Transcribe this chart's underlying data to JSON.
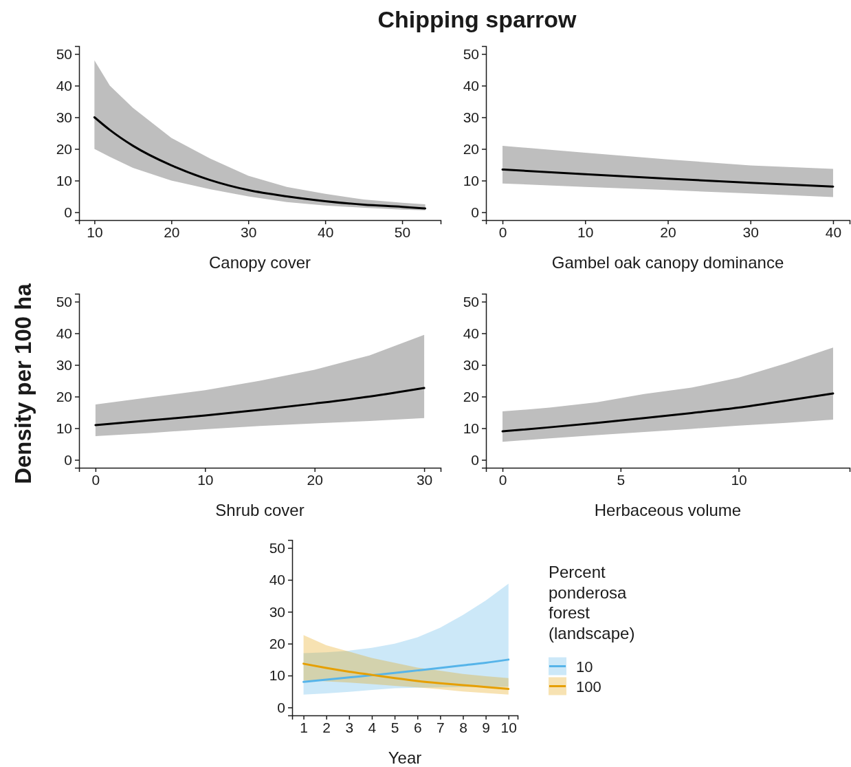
{
  "chart_data": [
    {
      "type": "line",
      "title": "Chipping sparrow",
      "ylabel": "Density per 100 ha",
      "xlabel": "Canopy cover",
      "xlim": [
        8,
        55
      ],
      "xticks": [
        10,
        20,
        30,
        40,
        50
      ],
      "ylim": [
        -2.5,
        52.5
      ],
      "yticks": [
        0,
        10,
        20,
        30,
        40,
        50
      ],
      "legend": false,
      "series": [
        {
          "color": "#000000",
          "x": [
            10,
            12,
            15,
            20,
            25,
            30,
            35,
            40,
            45,
            50,
            53
          ],
          "values": [
            30,
            26,
            21,
            14.8,
            10.2,
            7,
            5,
            3.5,
            2.4,
            1.7,
            1.2
          ],
          "lower": [
            20,
            17.5,
            14,
            10,
            7.3,
            5,
            3.2,
            2.1,
            1.4,
            0.8,
            0.6
          ],
          "upper": [
            48,
            40,
            33,
            23.5,
            17,
            11.5,
            8,
            5.8,
            4,
            3,
            2.5
          ]
        }
      ]
    },
    {
      "type": "line",
      "xlabel": "Gambel oak canopy dominance",
      "xlim": [
        -2,
        42
      ],
      "xticks": [
        0,
        10,
        20,
        30,
        40
      ],
      "ylim": [
        -2.5,
        52.5
      ],
      "yticks": [
        0,
        10,
        20,
        30,
        40,
        50
      ],
      "legend": false,
      "series": [
        {
          "color": "#000000",
          "x": [
            0,
            10,
            20,
            30,
            40
          ],
          "values": [
            13.5,
            12,
            10.6,
            9.3,
            8.1
          ],
          "lower": [
            9.1,
            8,
            7,
            5.9,
            4.8
          ],
          "upper": [
            21,
            18.8,
            16.7,
            14.8,
            13.7
          ]
        }
      ]
    },
    {
      "type": "line",
      "xlabel": "Shrub cover",
      "xlim": [
        -1.5,
        31.5
      ],
      "xticks": [
        0,
        10,
        20,
        30
      ],
      "ylim": [
        -2.5,
        52.5
      ],
      "yticks": [
        0,
        10,
        20,
        30,
        40,
        50
      ],
      "legend": false,
      "series": [
        {
          "color": "#000000",
          "x": [
            0,
            5,
            10,
            15,
            20,
            25,
            30
          ],
          "values": [
            11,
            12.5,
            14,
            15.8,
            17.8,
            20,
            22.7
          ],
          "lower": [
            7.5,
            8.5,
            9.7,
            10.7,
            11.5,
            12.3,
            13.2
          ],
          "upper": [
            17.5,
            19.8,
            22,
            25,
            28.5,
            33,
            39.5
          ]
        }
      ]
    },
    {
      "type": "line",
      "xlabel": "Herbaceous volume",
      "xlim": [
        -0.7,
        14.7
      ],
      "xticks": [
        0,
        5,
        10
      ],
      "ylim": [
        -2.5,
        52.5
      ],
      "yticks": [
        0,
        10,
        20,
        30,
        40,
        50
      ],
      "legend": false,
      "series": [
        {
          "color": "#000000",
          "x": [
            0,
            2,
            4,
            6,
            8,
            10,
            12,
            14
          ],
          "values": [
            9,
            10.3,
            11.7,
            13.2,
            14.8,
            16.5,
            18.7,
            21
          ],
          "lower": [
            5.7,
            6.8,
            7.8,
            8.8,
            9.8,
            10.8,
            11.7,
            12.7
          ],
          "upper": [
            15.3,
            16.5,
            18.2,
            20.8,
            22.8,
            26,
            30.5,
            35.5
          ]
        }
      ]
    },
    {
      "type": "line",
      "xlabel": "Year",
      "legend_title": "Percent ponderosa forest (landscape)",
      "xlim": [
        0.5,
        10.4
      ],
      "xticks": [
        1,
        2,
        3,
        4,
        5,
        6,
        7,
        8,
        9,
        10
      ],
      "ylim": [
        -2.5,
        52.5
      ],
      "yticks": [
        0,
        10,
        20,
        30,
        40,
        50
      ],
      "legend": "right",
      "series": [
        {
          "name": "10",
          "color": "#56b4e9",
          "x": [
            1,
            2,
            3,
            4,
            5,
            6,
            7,
            8,
            9,
            10
          ],
          "values": [
            8,
            8.7,
            9.4,
            10.1,
            10.8,
            11.6,
            12.4,
            13.2,
            14,
            15
          ],
          "lower": [
            4,
            4.4,
            4.9,
            5.5,
            6,
            6.2,
            6.3,
            6.4,
            6.4,
            6.5
          ],
          "upper": [
            17,
            17.3,
            17.8,
            18.7,
            20,
            22,
            25,
            29,
            33.5,
            38.8
          ]
        },
        {
          "name": "100",
          "color": "#e69f00",
          "x": [
            1,
            2,
            3,
            4,
            5,
            6,
            7,
            8,
            9,
            10
          ],
          "values": [
            13.7,
            12.4,
            11.2,
            10.2,
            9.2,
            8.3,
            7.6,
            7,
            6.4,
            5.8
          ],
          "lower": [
            8.5,
            8.2,
            7.8,
            7.3,
            6.8,
            6.3,
            5.7,
            5,
            4.5,
            4
          ],
          "upper": [
            22.7,
            19.5,
            17.5,
            15.5,
            14,
            12.5,
            11.5,
            10.5,
            9.8,
            9.2
          ]
        }
      ]
    }
  ]
}
